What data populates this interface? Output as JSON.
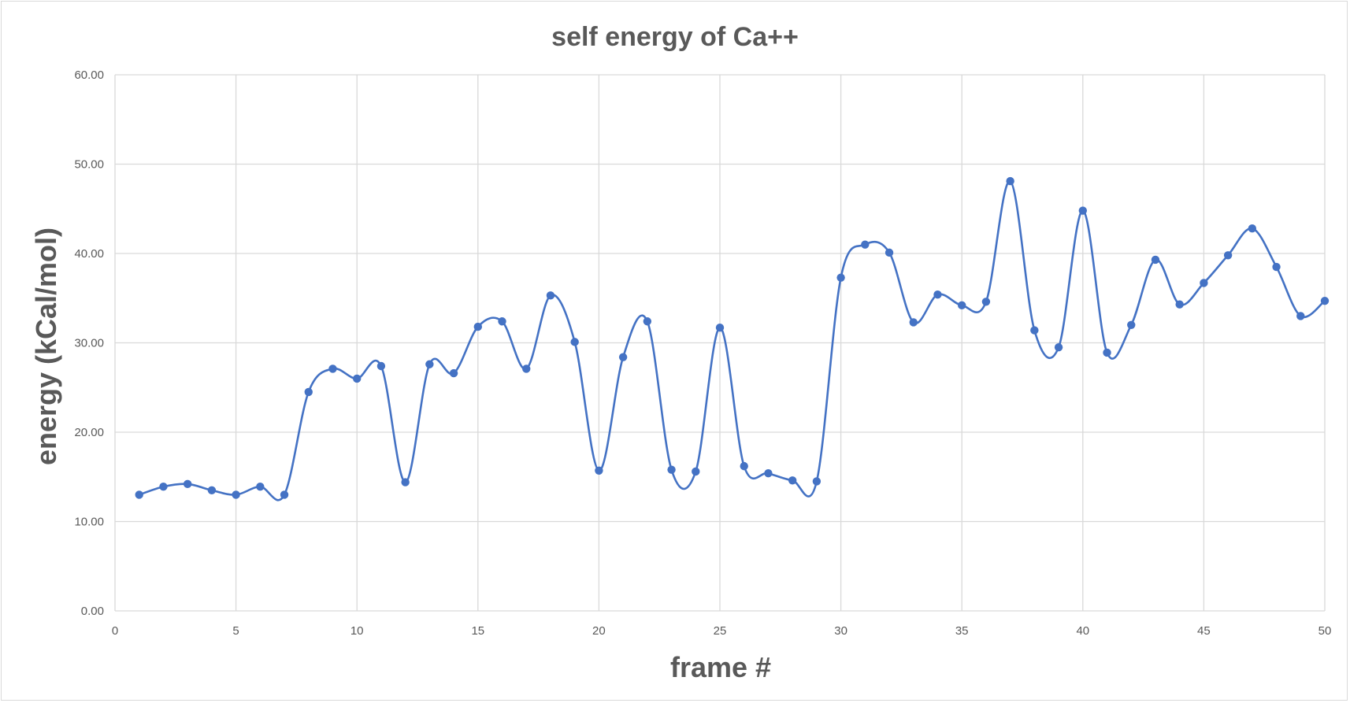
{
  "chart_data": {
    "type": "scatter",
    "title": "self energy of Ca++",
    "xlabel": "frame #",
    "ylabel": "energy (kCal/mol)",
    "xlim": [
      0,
      50
    ],
    "ylim": [
      0,
      60
    ],
    "x_ticks": [
      0,
      5,
      10,
      15,
      20,
      25,
      30,
      35,
      40,
      45,
      50
    ],
    "y_ticks": [
      "0.00",
      "10.00",
      "20.00",
      "30.00",
      "40.00",
      "50.00",
      "60.00"
    ],
    "grid": true,
    "smoothed_line": true,
    "markers": true,
    "series_color": "#4472c4",
    "series": [
      {
        "x": [
          1,
          2,
          3,
          4,
          5,
          6,
          7,
          8,
          9,
          10,
          11,
          12,
          13,
          14,
          15,
          16,
          17,
          18,
          19,
          20,
          21,
          22,
          23,
          24,
          25,
          26,
          27,
          28,
          29,
          30,
          31,
          32,
          33,
          34,
          35,
          36,
          37,
          38,
          39,
          40,
          41,
          42,
          43,
          44,
          45,
          46,
          47,
          48,
          49,
          50
        ],
        "y": [
          13.0,
          13.9,
          14.2,
          13.5,
          13.0,
          13.9,
          13.0,
          24.5,
          27.1,
          26.0,
          27.4,
          14.4,
          27.6,
          26.6,
          31.8,
          32.4,
          27.1,
          35.3,
          30.1,
          15.7,
          28.4,
          32.4,
          15.8,
          15.6,
          31.7,
          16.2,
          15.4,
          14.6,
          14.5,
          37.3,
          41.0,
          40.1,
          32.3,
          35.4,
          34.2,
          34.6,
          48.1,
          31.4,
          29.5,
          44.8,
          28.9,
          32.0,
          39.3,
          34.3,
          36.7,
          39.8,
          42.8,
          38.5,
          33.0,
          34.7
        ]
      }
    ]
  }
}
